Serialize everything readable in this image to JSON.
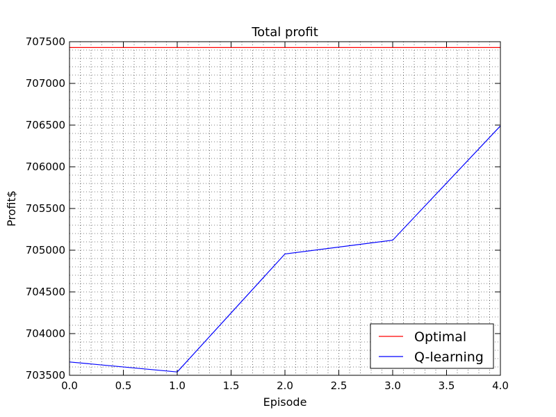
{
  "chart_data": {
    "type": "line",
    "title": "Total profit",
    "xlabel": "Episode",
    "ylabel": "Profit$",
    "xlim": [
      0.0,
      4.0
    ],
    "ylim": [
      703500,
      707500
    ],
    "xticks": [
      0.0,
      0.5,
      1.0,
      1.5,
      2.0,
      2.5,
      3.0,
      3.5,
      4.0
    ],
    "xtick_labels": [
      "0.0",
      "0.5",
      "1.0",
      "1.5",
      "2.0",
      "2.5",
      "3.0",
      "3.5",
      "4.0"
    ],
    "yticks": [
      703500,
      704000,
      704500,
      705000,
      705500,
      706000,
      706500,
      707000,
      707500
    ],
    "ytick_labels": [
      "703500",
      "704000",
      "704500",
      "705000",
      "705500",
      "706000",
      "706500",
      "707000",
      "707500"
    ],
    "grid": true,
    "legend_position": "bottom-right",
    "series": [
      {
        "name": "Optimal",
        "color": "#ff0000",
        "x": [
          0,
          4
        ],
        "y": [
          707430,
          707430
        ]
      },
      {
        "name": "Q-learning",
        "color": "#0000ff",
        "x": [
          0,
          1,
          2,
          3,
          4
        ],
        "y": [
          703660,
          703540,
          704955,
          705120,
          706490
        ]
      }
    ]
  }
}
